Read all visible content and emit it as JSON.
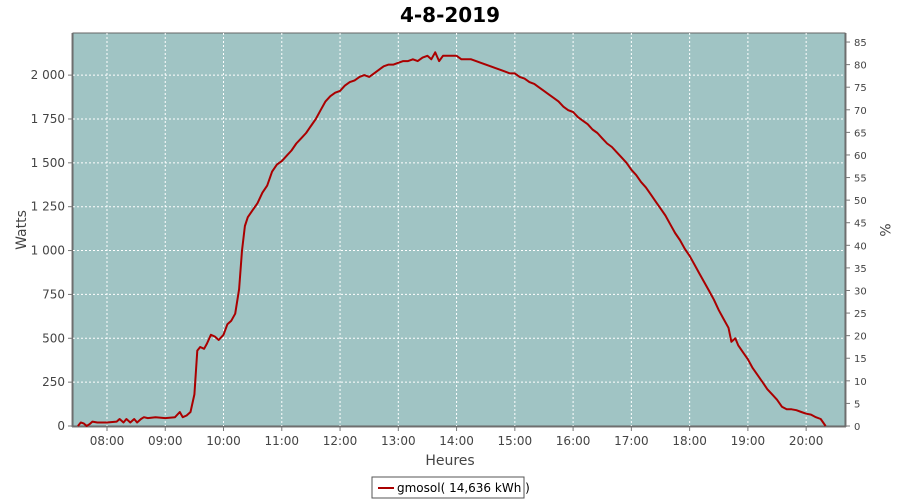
{
  "chart_data": {
    "type": "line",
    "title": "4-8-2019",
    "xlabel": "Heures",
    "ylabel": "Watts",
    "y2label": "%",
    "xlim": [
      "07:25",
      "20:40"
    ],
    "ylim": [
      0,
      2240
    ],
    "y2lim": [
      0,
      87
    ],
    "x_tick_labels": [
      "08:00",
      "09:00",
      "10:00",
      "11:00",
      "12:00",
      "13:00",
      "14:00",
      "15:00",
      "16:00",
      "17:00",
      "18:00",
      "19:00",
      "20:00"
    ],
    "y_ticks": [
      {
        "value": 0,
        "label": "0"
      },
      {
        "value": 250,
        "label": "250"
      },
      {
        "value": 500,
        "label": "500"
      },
      {
        "value": 750,
        "label": "750"
      },
      {
        "value": 1000,
        "label": "1 000"
      },
      {
        "value": 1250,
        "label": "1 250"
      },
      {
        "value": 1500,
        "label": "1 500"
      },
      {
        "value": 1750,
        "label": "1 750"
      },
      {
        "value": 2000,
        "label": "2 000"
      }
    ],
    "y2_ticks": [
      0,
      5,
      10,
      15,
      20,
      25,
      30,
      35,
      40,
      45,
      50,
      55,
      60,
      65,
      70,
      75,
      80,
      85
    ],
    "grid": true,
    "legend_position": "bottom-center",
    "plot_background": "#a0c4c4",
    "series": [
      {
        "name": "gmosol( 14,636 kWh )",
        "color": "#aa0000",
        "points": [
          [
            "07:30",
            0
          ],
          [
            "07:33",
            20
          ],
          [
            "07:36",
            15
          ],
          [
            "07:39",
            0
          ],
          [
            "07:42",
            10
          ],
          [
            "07:45",
            25
          ],
          [
            "07:50",
            20
          ],
          [
            "08:00",
            20
          ],
          [
            "08:10",
            25
          ],
          [
            "08:13",
            40
          ],
          [
            "08:17",
            20
          ],
          [
            "08:20",
            40
          ],
          [
            "08:24",
            20
          ],
          [
            "08:28",
            40
          ],
          [
            "08:31",
            20
          ],
          [
            "08:35",
            40
          ],
          [
            "08:38",
            50
          ],
          [
            "08:42",
            45
          ],
          [
            "08:50",
            50
          ],
          [
            "09:00",
            45
          ],
          [
            "09:10",
            50
          ],
          [
            "09:15",
            80
          ],
          [
            "09:18",
            50
          ],
          [
            "09:22",
            60
          ],
          [
            "09:26",
            80
          ],
          [
            "09:30",
            180
          ],
          [
            "09:33",
            430
          ],
          [
            "09:36",
            450
          ],
          [
            "09:40",
            440
          ],
          [
            "09:43",
            470
          ],
          [
            "09:47",
            520
          ],
          [
            "09:51",
            510
          ],
          [
            "09:55",
            490
          ],
          [
            "10:00",
            520
          ],
          [
            "10:04",
            580
          ],
          [
            "10:08",
            600
          ],
          [
            "10:12",
            640
          ],
          [
            "10:16",
            780
          ],
          [
            "10:19",
            1000
          ],
          [
            "10:22",
            1140
          ],
          [
            "10:25",
            1190
          ],
          [
            "10:30",
            1230
          ],
          [
            "10:35",
            1270
          ],
          [
            "10:40",
            1330
          ],
          [
            "10:45",
            1370
          ],
          [
            "10:50",
            1450
          ],
          [
            "10:55",
            1490
          ],
          [
            "11:00",
            1510
          ],
          [
            "11:05",
            1540
          ],
          [
            "11:10",
            1570
          ],
          [
            "11:15",
            1610
          ],
          [
            "11:20",
            1640
          ],
          [
            "11:25",
            1670
          ],
          [
            "11:30",
            1710
          ],
          [
            "11:35",
            1750
          ],
          [
            "11:40",
            1800
          ],
          [
            "11:45",
            1850
          ],
          [
            "11:50",
            1880
          ],
          [
            "11:55",
            1900
          ],
          [
            "12:00",
            1910
          ],
          [
            "12:05",
            1940
          ],
          [
            "12:10",
            1960
          ],
          [
            "12:15",
            1970
          ],
          [
            "12:20",
            1990
          ],
          [
            "12:25",
            2000
          ],
          [
            "12:30",
            1990
          ],
          [
            "12:35",
            2010
          ],
          [
            "12:40",
            2030
          ],
          [
            "12:45",
            2050
          ],
          [
            "12:50",
            2060
          ],
          [
            "12:55",
            2060
          ],
          [
            "13:00",
            2070
          ],
          [
            "13:05",
            2080
          ],
          [
            "13:10",
            2080
          ],
          [
            "13:15",
            2090
          ],
          [
            "13:20",
            2080
          ],
          [
            "13:25",
            2100
          ],
          [
            "13:30",
            2110
          ],
          [
            "13:34",
            2090
          ],
          [
            "13:38",
            2130
          ],
          [
            "13:42",
            2080
          ],
          [
            "13:46",
            2110
          ],
          [
            "13:50",
            2110
          ],
          [
            "13:55",
            2110
          ],
          [
            "14:00",
            2110
          ],
          [
            "14:05",
            2090
          ],
          [
            "14:10",
            2090
          ],
          [
            "14:15",
            2090
          ],
          [
            "14:20",
            2080
          ],
          [
            "14:25",
            2070
          ],
          [
            "14:30",
            2060
          ],
          [
            "14:35",
            2050
          ],
          [
            "14:40",
            2040
          ],
          [
            "14:45",
            2030
          ],
          [
            "14:50",
            2020
          ],
          [
            "14:55",
            2010
          ],
          [
            "15:00",
            2010
          ],
          [
            "15:05",
            1990
          ],
          [
            "15:10",
            1980
          ],
          [
            "15:15",
            1960
          ],
          [
            "15:20",
            1950
          ],
          [
            "15:25",
            1930
          ],
          [
            "15:30",
            1910
          ],
          [
            "15:35",
            1890
          ],
          [
            "15:40",
            1870
          ],
          [
            "15:45",
            1850
          ],
          [
            "15:50",
            1820
          ],
          [
            "15:55",
            1800
          ],
          [
            "16:00",
            1790
          ],
          [
            "16:05",
            1760
          ],
          [
            "16:10",
            1740
          ],
          [
            "16:15",
            1720
          ],
          [
            "16:20",
            1690
          ],
          [
            "16:25",
            1670
          ],
          [
            "16:30",
            1640
          ],
          [
            "16:35",
            1610
          ],
          [
            "16:40",
            1590
          ],
          [
            "16:45",
            1560
          ],
          [
            "16:50",
            1530
          ],
          [
            "16:55",
            1500
          ],
          [
            "17:00",
            1460
          ],
          [
            "17:05",
            1430
          ],
          [
            "17:10",
            1390
          ],
          [
            "17:15",
            1360
          ],
          [
            "17:20",
            1320
          ],
          [
            "17:25",
            1280
          ],
          [
            "17:30",
            1240
          ],
          [
            "17:35",
            1200
          ],
          [
            "17:40",
            1150
          ],
          [
            "17:45",
            1100
          ],
          [
            "17:50",
            1060
          ],
          [
            "17:55",
            1010
          ],
          [
            "18:00",
            970
          ],
          [
            "18:05",
            920
          ],
          [
            "18:10",
            870
          ],
          [
            "18:15",
            820
          ],
          [
            "18:20",
            770
          ],
          [
            "18:25",
            720
          ],
          [
            "18:30",
            660
          ],
          [
            "18:35",
            610
          ],
          [
            "18:40",
            560
          ],
          [
            "18:43",
            480
          ],
          [
            "18:47",
            500
          ],
          [
            "18:50",
            460
          ],
          [
            "18:55",
            420
          ],
          [
            "19:00",
            380
          ],
          [
            "19:05",
            330
          ],
          [
            "19:10",
            290
          ],
          [
            "19:15",
            250
          ],
          [
            "19:20",
            210
          ],
          [
            "19:25",
            180
          ],
          [
            "19:30",
            150
          ],
          [
            "19:35",
            110
          ],
          [
            "19:40",
            95
          ],
          [
            "19:45",
            95
          ],
          [
            "19:50",
            90
          ],
          [
            "19:55",
            80
          ],
          [
            "20:00",
            70
          ],
          [
            "20:05",
            65
          ],
          [
            "20:10",
            50
          ],
          [
            "20:15",
            40
          ],
          [
            "20:20",
            0
          ]
        ]
      }
    ]
  }
}
